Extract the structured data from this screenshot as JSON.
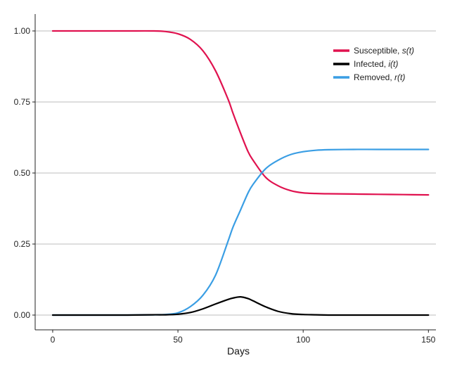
{
  "chart_data": {
    "type": "line",
    "title": "",
    "xlabel": "Days",
    "ylabel": "",
    "xlim": [
      -7,
      153
    ],
    "ylim": [
      0,
      1
    ],
    "x_ticks": [
      "0",
      "50",
      "100",
      "150"
    ],
    "x_tick_values": [
      0,
      50,
      100,
      150
    ],
    "y_ticks": [
      "0.00",
      "0.25",
      "0.50",
      "0.75",
      "1.00"
    ],
    "y_tick_values": [
      0,
      0.25,
      0.5,
      0.75,
      1.0
    ],
    "grid": "horizontal",
    "legend_position": "top-right",
    "x": [
      0,
      10,
      20,
      30,
      40,
      45,
      50,
      55,
      60,
      65,
      70,
      72,
      75,
      78,
      80,
      85,
      90,
      95,
      100,
      105,
      110,
      120,
      130,
      140,
      150
    ],
    "series": [
      {
        "name": "Susceptible, ",
        "fn": "s(t)",
        "color": "#e0124f",
        "values": [
          1.0,
          1.0,
          1.0,
          1.0,
          1.0,
          0.998,
          0.99,
          0.97,
          0.93,
          0.86,
          0.76,
          0.71,
          0.64,
          0.575,
          0.545,
          0.485,
          0.455,
          0.438,
          0.43,
          0.428,
          0.427,
          0.426,
          0.425,
          0.424,
          0.423
        ]
      },
      {
        "name": "Infected, ",
        "fn": "i(t)",
        "color": "#000000",
        "values": [
          0.0,
          0.0,
          0.0,
          0.0,
          0.001,
          0.001,
          0.003,
          0.009,
          0.022,
          0.039,
          0.055,
          0.06,
          0.064,
          0.058,
          0.05,
          0.029,
          0.013,
          0.005,
          0.002,
          0.001,
          0.0,
          0.0,
          0.0,
          0.0,
          0.0
        ]
      },
      {
        "name": "Removed, ",
        "fn": "r(t)",
        "color": "#3a9ee4",
        "values": [
          0.0,
          0.0,
          0.0,
          0.0,
          0.001,
          0.002,
          0.008,
          0.03,
          0.07,
          0.14,
          0.26,
          0.31,
          0.37,
          0.43,
          0.46,
          0.515,
          0.545,
          0.565,
          0.575,
          0.58,
          0.582,
          0.583,
          0.583,
          0.583,
          0.583
        ]
      }
    ]
  }
}
